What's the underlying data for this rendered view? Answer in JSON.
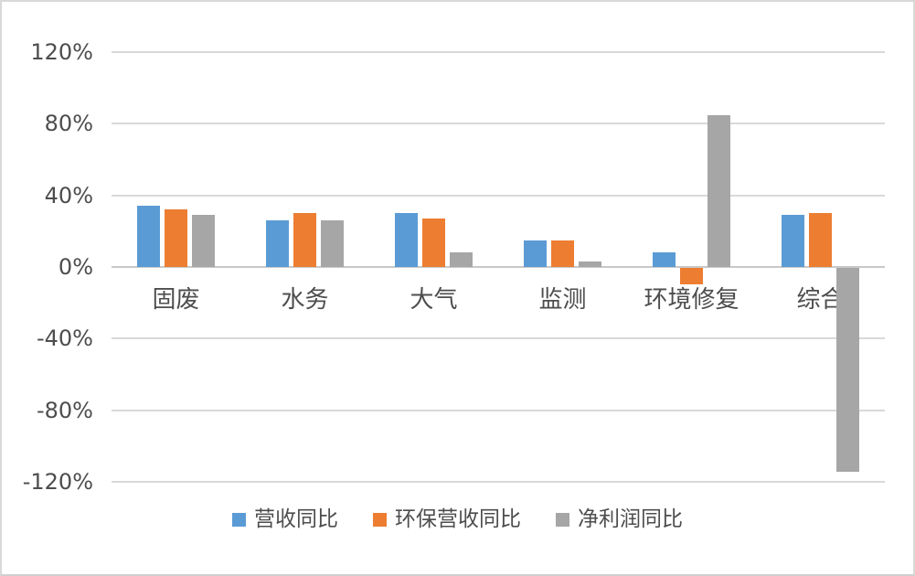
{
  "chart_data": {
    "type": "bar",
    "title": "",
    "unit": "%",
    "categories": [
      "固废",
      "水务",
      "大气",
      "监测",
      "环境修复",
      "综合"
    ],
    "series": [
      {
        "name": "营收同比",
        "color": "#5B9BD5",
        "values": [
          34,
          26,
          30,
          15,
          8,
          29
        ]
      },
      {
        "name": "环保营收同比",
        "color": "#ED7D31",
        "values": [
          32,
          30,
          27,
          15,
          -9,
          30
        ]
      },
      {
        "name": "净利润同比",
        "color": "#A6A6A6",
        "values": [
          29,
          26,
          8,
          3,
          85,
          -114
        ]
      }
    ],
    "y_ticks": [
      {
        "label": "120%",
        "value": 120
      },
      {
        "label": "80%",
        "value": 80
      },
      {
        "label": "40%",
        "value": 40
      },
      {
        "label": "0%",
        "value": 0
      },
      {
        "label": "-40%",
        "value": -40
      },
      {
        "label": "-80%",
        "value": -80
      },
      {
        "label": "-120%",
        "value": -120
      }
    ],
    "ylim": [
      -120,
      120
    ],
    "grid": true,
    "legend_position": "bottom"
  },
  "colors": {
    "background": "#FFFFFF",
    "frame_border": "#D9D9D9",
    "gridline": "#D9D9D9",
    "zero_line": "#C8C8C8",
    "text": "#4D4D4D"
  }
}
